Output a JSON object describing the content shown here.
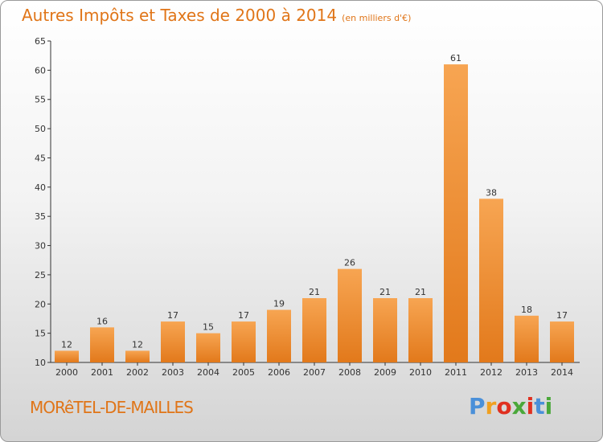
{
  "header": {
    "title": "Autres Impôts et Taxes de 2000 à 2014",
    "unit_note": "(en milliers d'€)"
  },
  "footer": {
    "commune": "MORêTEL-DE-MAILLES",
    "logo_letters": [
      "P",
      "r",
      "o",
      "x",
      "i",
      "t",
      "i"
    ]
  },
  "colors": {
    "title": "#e07518",
    "bar_light": "#f7a552",
    "bar_dark": "#e2791b",
    "logo": [
      "#4a90d9",
      "#f0a020",
      "#e03020",
      "#4aa83a",
      "#e03020",
      "#4a90d9",
      "#4aa83a"
    ]
  },
  "chart_data": {
    "type": "bar",
    "categories": [
      "2000",
      "2001",
      "2002",
      "2003",
      "2004",
      "2005",
      "2006",
      "2007",
      "2008",
      "2009",
      "2010",
      "2011",
      "2012",
      "2013",
      "2014"
    ],
    "values": [
      12,
      16,
      12,
      17,
      15,
      17,
      19,
      21,
      26,
      21,
      21,
      61,
      38,
      18,
      17
    ],
    "data_labels": [
      "12",
      "16",
      "12",
      "17",
      "15",
      "17",
      "19",
      "21",
      "26",
      "21",
      "21",
      "61",
      "38",
      "18",
      "17"
    ],
    "ylim": [
      10,
      65
    ],
    "yticks": [
      10,
      15,
      20,
      25,
      30,
      35,
      40,
      45,
      50,
      55,
      60,
      65
    ],
    "ytick_labels": [
      "10",
      "15",
      "20",
      "25",
      "30",
      "35",
      "40",
      "45",
      "50",
      "55",
      "60",
      "65"
    ],
    "grid": false,
    "legend": "none"
  }
}
